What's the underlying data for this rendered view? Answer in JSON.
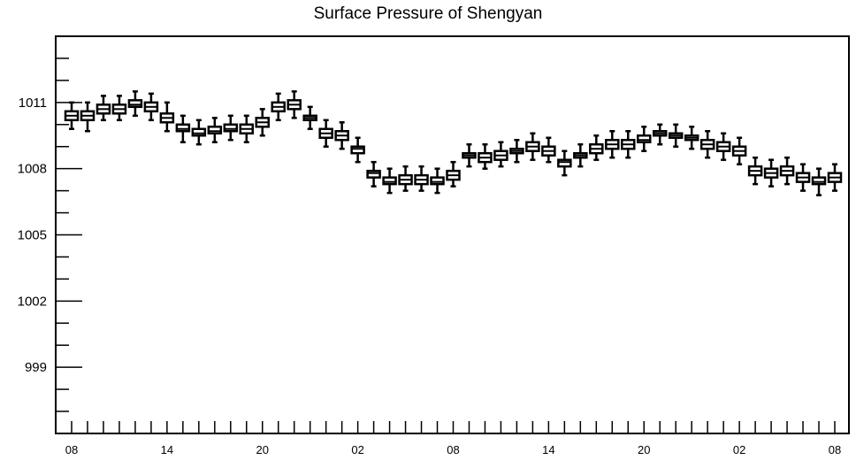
{
  "chart_data": {
    "type": "box",
    "title": "Surface Pressure of Shengyan",
    "xlabel": "",
    "ylabel": "",
    "ylim": [
      996,
      1014
    ],
    "y_ticks": [
      999,
      1002,
      1005,
      1008,
      1011
    ],
    "x_tick_labels": [
      "08",
      "14",
      "20",
      "02",
      "08",
      "14",
      "20",
      "02",
      "08"
    ],
    "x_tick_label_index": [
      0,
      6,
      12,
      18,
      24,
      30,
      36,
      42,
      48
    ],
    "grid": false,
    "series": [
      {
        "medians": [
          1010.4,
          1010.4,
          1010.7,
          1010.7,
          1010.9,
          1010.8,
          1010.3,
          1009.8,
          1009.6,
          1009.7,
          1009.8,
          1009.8,
          1010.1,
          1010.8,
          1010.9,
          1010.3,
          1009.6,
          1009.5,
          1008.9,
          1007.8,
          1007.4,
          1007.5,
          1007.5,
          1007.4,
          1007.7,
          1008.6,
          1008.5,
          1008.6,
          1008.8,
          1009.0,
          1008.8,
          1008.3,
          1008.6,
          1008.9,
          1009.1,
          1009.1,
          1009.3,
          1009.6,
          1009.5,
          1009.4,
          1009.1,
          1009.0,
          1008.8,
          1007.9,
          1007.8,
          1007.9,
          1007.6,
          1007.4,
          1007.6
        ],
        "q1": [
          1010.2,
          1010.2,
          1010.5,
          1010.5,
          1010.8,
          1010.6,
          1010.1,
          1009.7,
          1009.5,
          1009.6,
          1009.7,
          1009.6,
          1009.9,
          1010.6,
          1010.7,
          1010.2,
          1009.4,
          1009.3,
          1008.7,
          1007.6,
          1007.3,
          1007.3,
          1007.3,
          1007.3,
          1007.5,
          1008.5,
          1008.3,
          1008.4,
          1008.7,
          1008.8,
          1008.6,
          1008.1,
          1008.5,
          1008.7,
          1008.9,
          1008.9,
          1009.2,
          1009.5,
          1009.4,
          1009.3,
          1008.9,
          1008.8,
          1008.6,
          1007.7,
          1007.6,
          1007.7,
          1007.4,
          1007.3,
          1007.4
        ],
        "q3": [
          1010.6,
          1010.6,
          1010.9,
          1010.9,
          1011.1,
          1011.0,
          1010.5,
          1010.0,
          1009.8,
          1009.9,
          1010.0,
          1010.0,
          1010.3,
          1011.0,
          1011.1,
          1010.4,
          1009.8,
          1009.7,
          1009.0,
          1007.9,
          1007.6,
          1007.7,
          1007.7,
          1007.6,
          1007.9,
          1008.7,
          1008.7,
          1008.8,
          1008.9,
          1009.2,
          1009.0,
          1008.4,
          1008.7,
          1009.1,
          1009.3,
          1009.3,
          1009.5,
          1009.7,
          1009.6,
          1009.5,
          1009.3,
          1009.2,
          1009.0,
          1008.1,
          1008.0,
          1008.1,
          1007.8,
          1007.6,
          1007.8
        ],
        "min": [
          1009.8,
          1009.7,
          1010.2,
          1010.2,
          1010.4,
          1010.2,
          1009.7,
          1009.2,
          1009.1,
          1009.2,
          1009.3,
          1009.2,
          1009.5,
          1010.2,
          1010.3,
          1009.8,
          1009.0,
          1008.9,
          1008.3,
          1007.2,
          1006.9,
          1007.0,
          1007.0,
          1006.9,
          1007.2,
          1008.1,
          1008.0,
          1008.1,
          1008.3,
          1008.4,
          1008.3,
          1007.7,
          1008.1,
          1008.4,
          1008.5,
          1008.5,
          1008.8,
          1009.1,
          1009.0,
          1008.9,
          1008.5,
          1008.4,
          1008.2,
          1007.3,
          1007.2,
          1007.3,
          1007.0,
          1006.8,
          1007.0
        ],
        "max": [
          1011.0,
          1011.0,
          1011.3,
          1011.3,
          1011.5,
          1011.4,
          1011.0,
          1010.4,
          1010.2,
          1010.3,
          1010.4,
          1010.4,
          1010.7,
          1011.4,
          1011.5,
          1010.8,
          1010.2,
          1010.1,
          1009.4,
          1008.3,
          1008.0,
          1008.1,
          1008.1,
          1008.0,
          1008.3,
          1009.1,
          1009.1,
          1009.2,
          1009.3,
          1009.6,
          1009.4,
          1008.8,
          1009.1,
          1009.5,
          1009.7,
          1009.7,
          1009.9,
          1010.0,
          1010.0,
          1009.9,
          1009.7,
          1009.6,
          1009.4,
          1008.5,
          1008.4,
          1008.5,
          1008.2,
          1008.0,
          1008.2
        ]
      }
    ]
  }
}
